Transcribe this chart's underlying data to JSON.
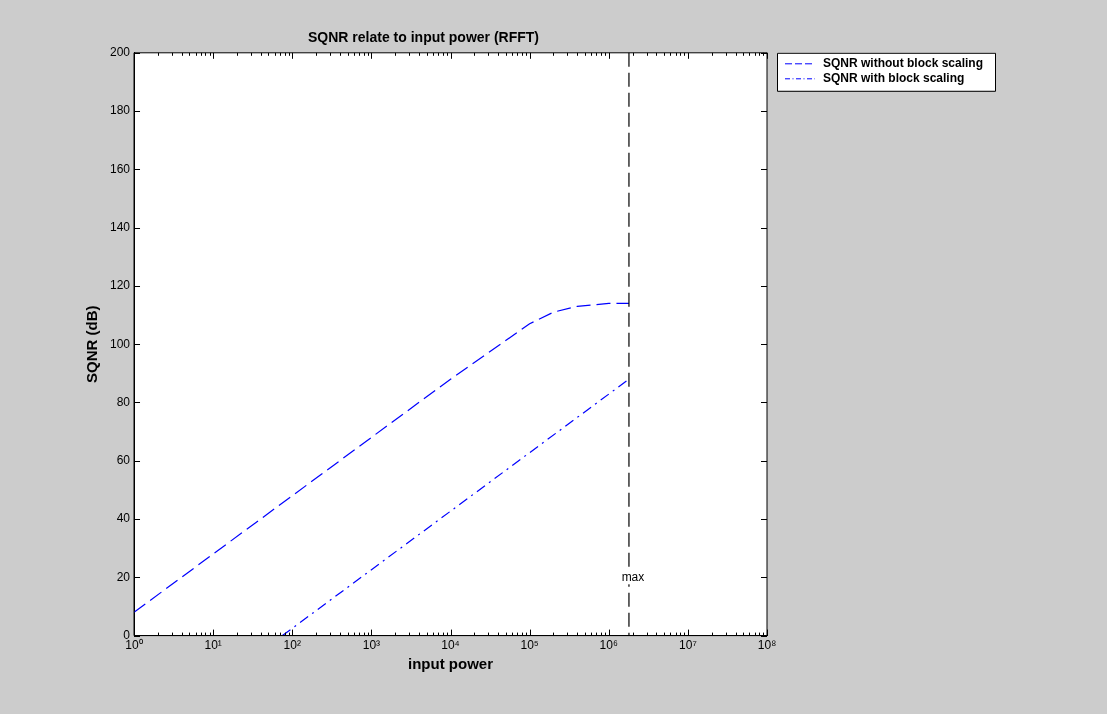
{
  "chart_data": {
    "type": "line",
    "title": "SQNR relate to input power (RFFT)",
    "xlabel": "input power",
    "ylabel": "SQNR (dB)",
    "log": "x",
    "legend": "top right",
    "grid": false,
    "marker": "none",
    "xlim": [
      1,
      100000000
    ],
    "ylim": [
      0,
      200
    ],
    "xticks": [
      {
        "value": 1,
        "label": "10⁰"
      },
      {
        "value": 10,
        "label": "10¹"
      },
      {
        "value": 100,
        "label": "10²"
      },
      {
        "value": 1000,
        "label": "10³"
      },
      {
        "value": 10000,
        "label": "10⁴"
      },
      {
        "value": 100000,
        "label": "10⁵"
      },
      {
        "value": 1000000,
        "label": "10⁶"
      },
      {
        "value": 10000000,
        "label": "10⁷"
      },
      {
        "value": 100000000,
        "label": "10⁸"
      }
    ],
    "yticks": [
      0,
      20,
      40,
      60,
      80,
      100,
      120,
      140,
      160,
      180,
      200
    ],
    "series": [
      {
        "name": "SQNR without block scaling",
        "color": "#0000ff",
        "line_style": "dashed",
        "x": [
          1,
          10,
          100,
          1000,
          10000,
          100000,
          200000,
          400000,
          1000000,
          1800000
        ],
        "values": [
          8,
          28,
          48,
          68,
          88,
          107,
          111,
          113,
          114,
          114
        ]
      },
      {
        "name": "SQNR with block scaling",
        "color": "#0000ff",
        "line_style": "dashdot",
        "x": [
          75,
          1800000
        ],
        "values": [
          0,
          88
        ]
      }
    ],
    "ref_lines": [
      {
        "axis": "x",
        "value": 1800000,
        "label": "max",
        "color": "#000000",
        "line_style": "dashed"
      }
    ]
  }
}
